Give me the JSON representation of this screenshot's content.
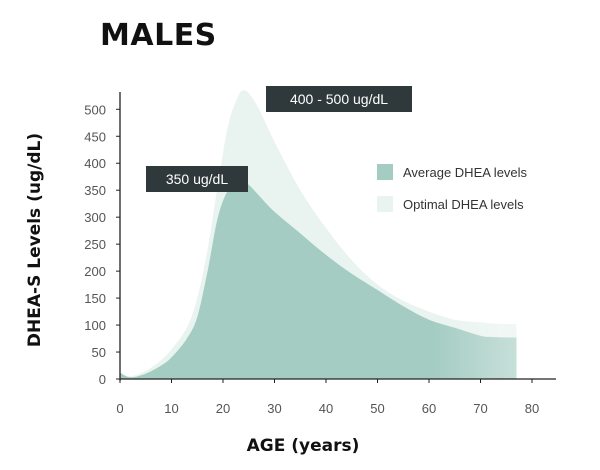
{
  "colors": {
    "average": "#a4ccc2",
    "optimal": "#e9f3ef",
    "callout_bg": "#2f393c",
    "axis": "#222222"
  },
  "chart_data": {
    "type": "area",
    "title": "MALES",
    "xlabel": "AGE (years)",
    "ylabel": "DHEA-S Levels (ug/dL)",
    "xlim": [
      0,
      80
    ],
    "ylim": [
      0,
      500
    ],
    "xticks": [
      0,
      10,
      20,
      30,
      40,
      50,
      60,
      70,
      80
    ],
    "yticks": [
      0,
      50,
      100,
      150,
      200,
      250,
      300,
      350,
      400,
      450,
      500
    ],
    "grid": false,
    "legend_position": "right",
    "series": [
      {
        "name": "Optimal DHEA levels",
        "x": [
          0,
          2,
          5,
          8,
          10,
          13,
          15,
          17,
          19,
          21,
          23,
          24,
          25,
          27,
          30,
          35,
          40,
          45,
          50,
          55,
          60,
          65,
          70,
          72,
          75,
          77
        ],
        "y": [
          10,
          5,
          15,
          35,
          55,
          95,
          150,
          240,
          360,
          470,
          525,
          535,
          530,
          500,
          440,
          350,
          280,
          220,
          175,
          145,
          125,
          110,
          105,
          103,
          102,
          102
        ]
      },
      {
        "name": "Average DHEA levels",
        "x": [
          0,
          2,
          5,
          8,
          10,
          13,
          15,
          17,
          19,
          21,
          23,
          24,
          25,
          27,
          30,
          35,
          40,
          45,
          50,
          55,
          60,
          65,
          70,
          72,
          75,
          77
        ],
        "y": [
          12,
          3,
          10,
          25,
          40,
          75,
          115,
          200,
          300,
          350,
          362,
          365,
          360,
          340,
          310,
          270,
          230,
          195,
          165,
          135,
          110,
          95,
          80,
          78,
          77,
          77
        ]
      }
    ],
    "annotations": [
      {
        "text": "400 - 500 ug/dL",
        "x": 24,
        "y": 535
      },
      {
        "text": "350 ug/dL",
        "x": 24,
        "y": 365
      }
    ]
  }
}
